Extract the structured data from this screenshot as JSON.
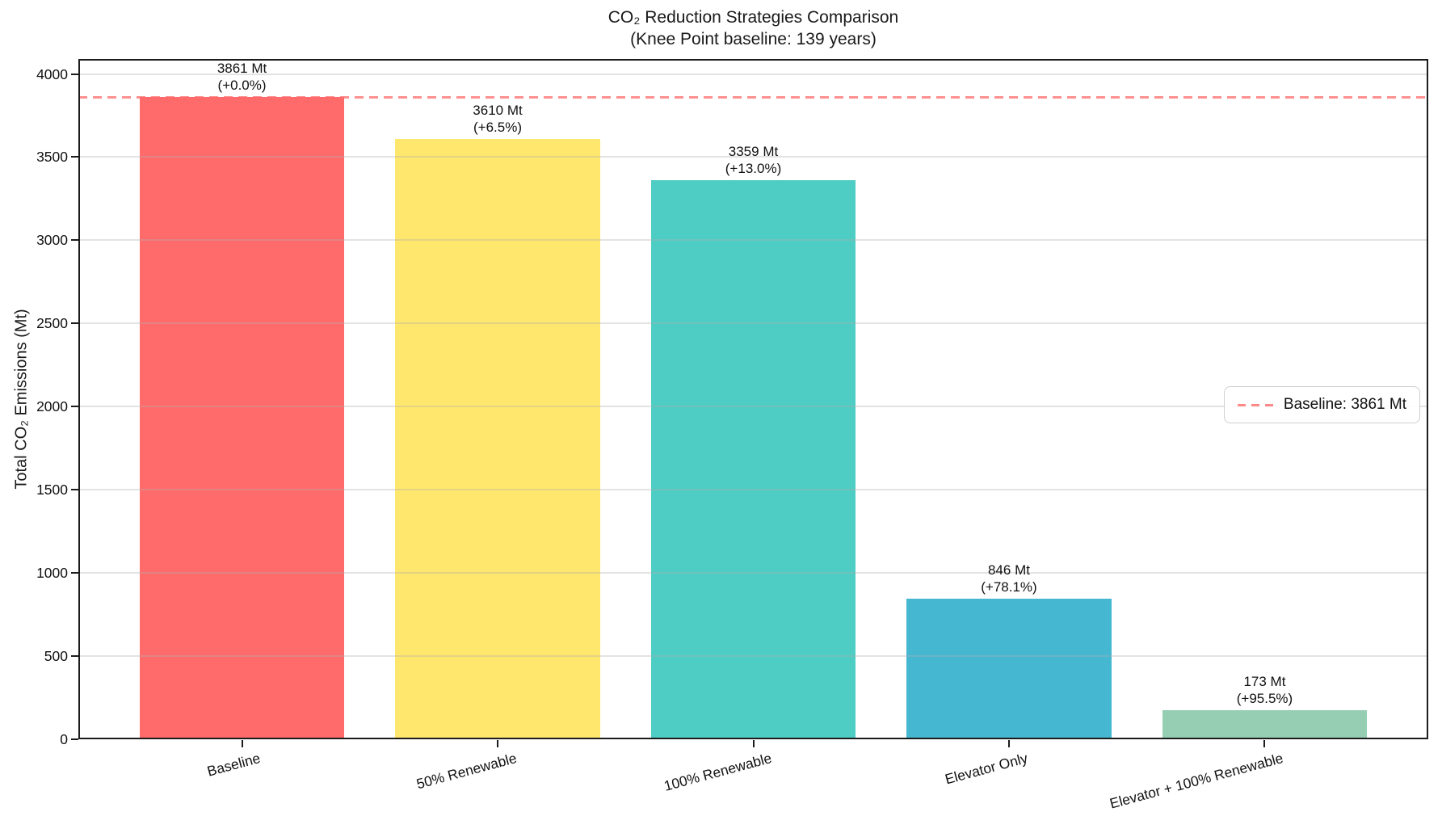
{
  "chart_data": {
    "type": "bar",
    "title": "CO₂ Reduction Strategies Comparison",
    "subtitle": "(Knee Point baseline: 139 years)",
    "ylabel": "Total CO₂ Emissions (Mt)",
    "xlabel": "",
    "categories": [
      "Baseline",
      "50% Renewable",
      "100% Renewable",
      "Elevator Only",
      "Elevator + 100% Renewable"
    ],
    "values": [
      3861,
      3610,
      3359,
      846,
      173
    ],
    "value_labels": [
      "3861 Mt",
      "3610 Mt",
      "3359 Mt",
      "846 Mt",
      "173 Mt"
    ],
    "pct_labels": [
      "(+0.0%)",
      "(+6.5%)",
      "(+13.0%)",
      "(+78.1%)",
      "(+95.5%)"
    ],
    "bar_colors": [
      "#FF6B6B",
      "#FFE66D",
      "#4ECDC4",
      "#45B7D1",
      "#96CEB4"
    ],
    "yticks": [
      0,
      500,
      1000,
      1500,
      2000,
      2500,
      3000,
      3500,
      4000
    ],
    "ylim": [
      0,
      4090
    ],
    "xtick_rotation_deg": 15,
    "grid": true,
    "legend_position": "center-right",
    "baseline": {
      "value": 3861,
      "color": "#FF6B6B",
      "style": "dashed",
      "legend_label": "Baseline: 3861 Mt"
    }
  }
}
